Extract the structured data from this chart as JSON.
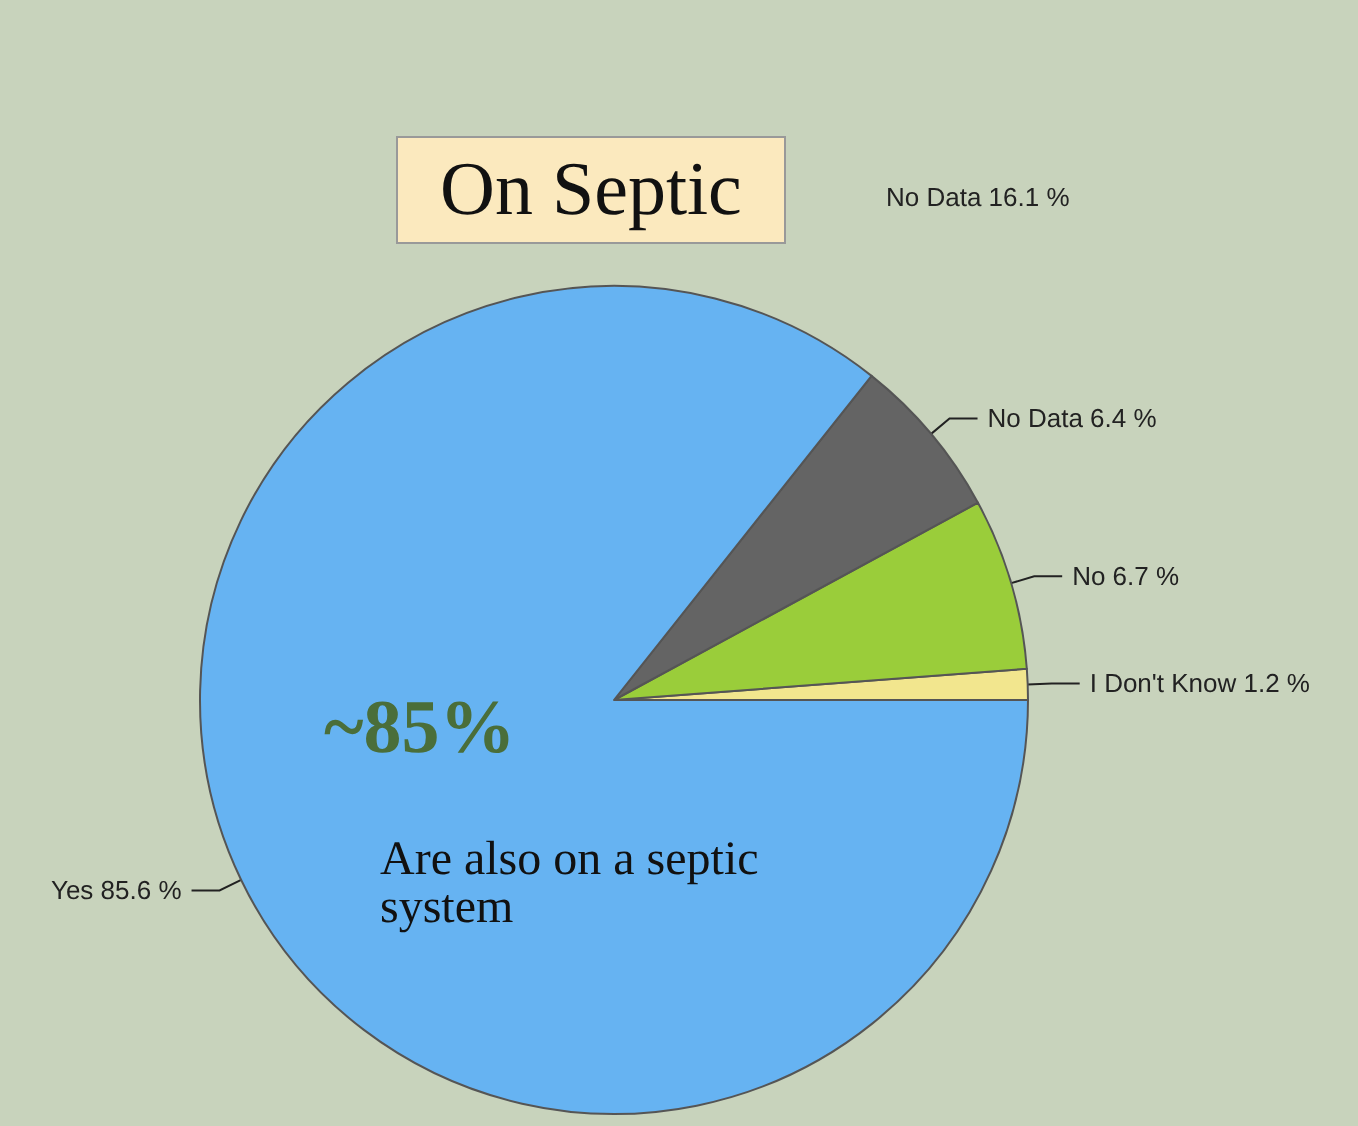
{
  "chart_data": {
    "type": "pie",
    "title": "On Septic",
    "categories": [
      "I Don't Know",
      "No",
      "No Data",
      "Yes"
    ],
    "values": [
      1.2,
      6.7,
      6.4,
      85.6
    ],
    "value_labels": [
      "1.2 %",
      "6.7 %",
      "6.4 %",
      "85.6 %"
    ],
    "colors": [
      "#f2e68e",
      "#9acd3a",
      "#646464",
      "#66b3f2"
    ],
    "annotations": [
      "~85%",
      "Are also on a septic system",
      "No Data 16.1 %"
    ],
    "legend": false
  }
}
